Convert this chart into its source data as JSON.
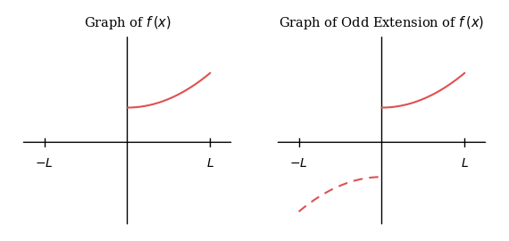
{
  "title_left": "Graph of $f\\,(x)$",
  "title_right": "Graph of Odd Extension of $f\\,(x)$",
  "curve_color": "#e05050",
  "axis_color": "#000000",
  "bg_color": "#ffffff",
  "L": 1.0,
  "x_tick_neg_label": "$-L$",
  "x_tick_pos_label": "$L$",
  "title_fontsize": 10.5,
  "tick_fontsize": 10,
  "line_width": 1.5,
  "xlim": [
    -1.35,
    1.35
  ],
  "ylim": [
    -2.5,
    3.2
  ],
  "x_axis_y": 0.0
}
